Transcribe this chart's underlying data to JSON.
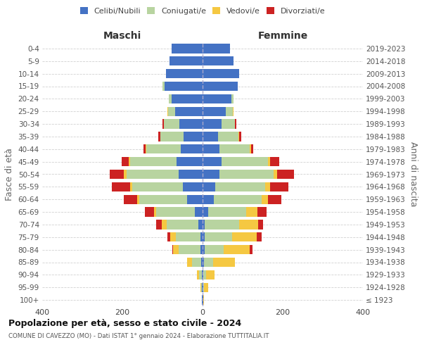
{
  "age_groups": [
    "100+",
    "95-99",
    "90-94",
    "85-89",
    "80-84",
    "75-79",
    "70-74",
    "65-69",
    "60-64",
    "55-59",
    "50-54",
    "45-49",
    "40-44",
    "35-39",
    "30-34",
    "25-29",
    "20-24",
    "15-19",
    "10-14",
    "5-9",
    "0-4"
  ],
  "birth_years": [
    "≤ 1923",
    "1924-1928",
    "1929-1933",
    "1934-1938",
    "1939-1943",
    "1944-1948",
    "1949-1953",
    "1954-1958",
    "1959-1963",
    "1964-1968",
    "1969-1973",
    "1974-1978",
    "1979-1983",
    "1984-1988",
    "1989-1993",
    "1994-1998",
    "1999-2003",
    "2004-2008",
    "2009-2013",
    "2014-2018",
    "2019-2023"
  ],
  "colors": {
    "celibi": "#4472C4",
    "coniugati": "#b8d4a0",
    "vedovi": "#f5c842",
    "divorziati": "#cc2222"
  },
  "maschi": {
    "celibi": [
      2,
      2,
      2,
      4,
      5,
      6,
      10,
      20,
      38,
      50,
      60,
      65,
      55,
      48,
      58,
      68,
      78,
      95,
      92,
      82,
      78
    ],
    "coniugati": [
      0,
      2,
      6,
      22,
      55,
      60,
      80,
      95,
      120,
      125,
      130,
      115,
      85,
      58,
      38,
      18,
      6,
      5,
      0,
      0,
      0
    ],
    "vedovi": [
      0,
      2,
      6,
      12,
      14,
      14,
      12,
      6,
      6,
      6,
      6,
      4,
      2,
      0,
      0,
      2,
      0,
      0,
      0,
      0,
      0
    ],
    "divorziati": [
      0,
      0,
      0,
      0,
      2,
      8,
      14,
      22,
      32,
      45,
      35,
      18,
      6,
      4,
      4,
      0,
      0,
      0,
      0,
      0,
      0
    ]
  },
  "femmine": {
    "celibi": [
      2,
      2,
      2,
      4,
      5,
      5,
      6,
      14,
      28,
      32,
      42,
      48,
      42,
      38,
      48,
      58,
      72,
      88,
      92,
      78,
      68
    ],
    "coniugati": [
      0,
      2,
      6,
      22,
      48,
      68,
      85,
      95,
      120,
      125,
      135,
      115,
      75,
      52,
      32,
      18,
      6,
      0,
      0,
      0,
      0
    ],
    "vedovi": [
      2,
      10,
      22,
      55,
      65,
      62,
      48,
      28,
      16,
      12,
      9,
      6,
      4,
      2,
      0,
      2,
      0,
      0,
      0,
      0,
      0
    ],
    "divorziati": [
      0,
      0,
      0,
      0,
      6,
      12,
      12,
      22,
      32,
      45,
      42,
      22,
      6,
      4,
      4,
      0,
      0,
      0,
      0,
      0,
      0
    ]
  },
  "title": "Popolazione per età, sesso e stato civile - 2024",
  "subtitle": "COMUNE DI CAVEZZO (MO) - Dati ISTAT 1° gennaio 2024 - Elaborazione TUTTITALIA.IT",
  "xlabel_left": "Maschi",
  "xlabel_right": "Femmine",
  "ylabel_left": "Fasce di età",
  "ylabel_right": "Anni di nascita",
  "xlim": 400,
  "bg_color": "#ffffff",
  "grid_color": "#cccccc",
  "axis_label_color": "#666666"
}
